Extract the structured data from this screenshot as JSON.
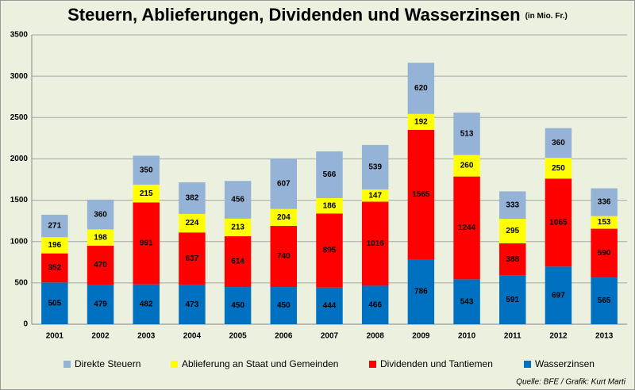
{
  "chart_data": {
    "type": "stacked_bar",
    "title": "Steuern, Ablieferungen, Dividenden und Wasserzinsen",
    "subtitle": "(in Mio. Fr.)",
    "source": "Quelle: BFE / Grafik: Kurt Marti",
    "categories": [
      "2001",
      "2002",
      "2003",
      "2004",
      "2005",
      "2006",
      "2007",
      "2008",
      "2009",
      "2010",
      "2011",
      "2012",
      "2013"
    ],
    "series": [
      {
        "name": "Direkte Steuern",
        "color": "#95b3d7",
        "values": [
          271,
          360,
          350,
          382,
          456,
          607,
          566,
          539,
          620,
          513,
          333,
          360,
          336
        ]
      },
      {
        "name": "Ablieferung an Staat und Gemeinden",
        "color": "#ffff00",
        "values": [
          196,
          198,
          215,
          224,
          213,
          204,
          186,
          147,
          192,
          260,
          295,
          250,
          153
        ]
      },
      {
        "name": "Dividenden und Tantiemen",
        "color": "#ff0000",
        "values": [
          352,
          470,
          991,
          637,
          614,
          740,
          895,
          1016,
          1565,
          1244,
          388,
          1065,
          590
        ]
      },
      {
        "name": "Wasserzinsen",
        "color": "#0070c0",
        "values": [
          505,
          479,
          482,
          473,
          450,
          450,
          444,
          466,
          786,
          543,
          591,
          697,
          565
        ]
      }
    ],
    "ylim": [
      0,
      3500
    ],
    "yticks": [
      0,
      500,
      1000,
      1500,
      2000,
      2500,
      3000,
      3500
    ],
    "grid": true,
    "legend": "bottom"
  }
}
